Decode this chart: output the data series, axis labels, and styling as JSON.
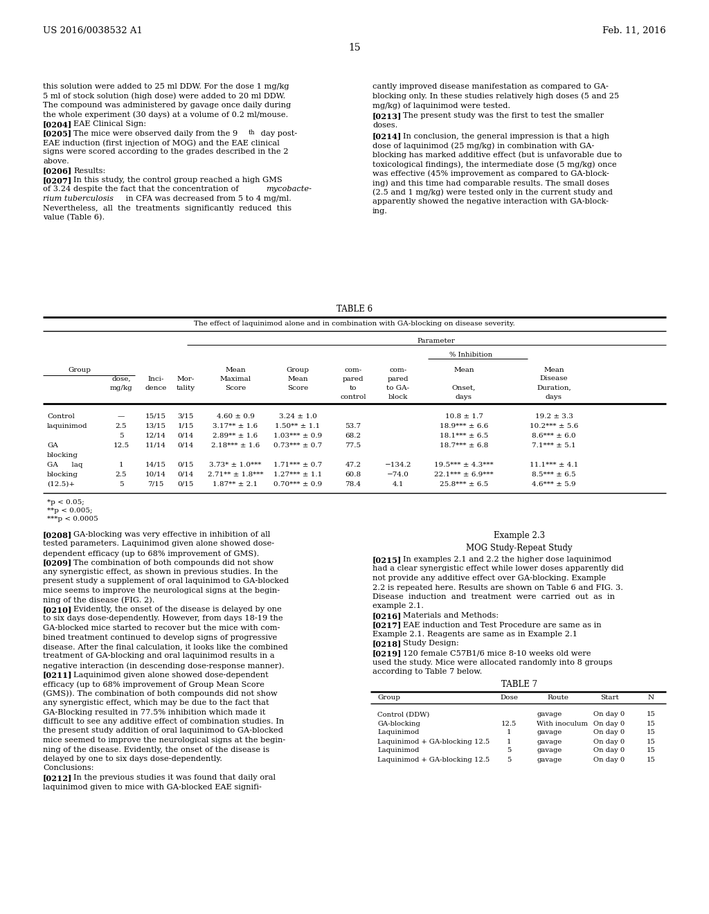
{
  "background_color": "#ffffff",
  "page_number": "15",
  "header_left": "US 2016/0038532 A1",
  "header_right": "Feb. 11, 2016",
  "footnotes": "*p < 0.05;\n**p < 0.005;\n***p < 0.0005",
  "table6_title": "TABLE 6",
  "table6_subtitle": "The effect of laquinimod alone and in combination with GA-blocking on disease severity.",
  "table7_title": "TABLE 7",
  "example23_title": "Example 2.3",
  "example23_subtitle": "MOG Study-Repeat Study",
  "fs_body": 8.5,
  "fs_table": 7.8,
  "fs_header": 9.5
}
